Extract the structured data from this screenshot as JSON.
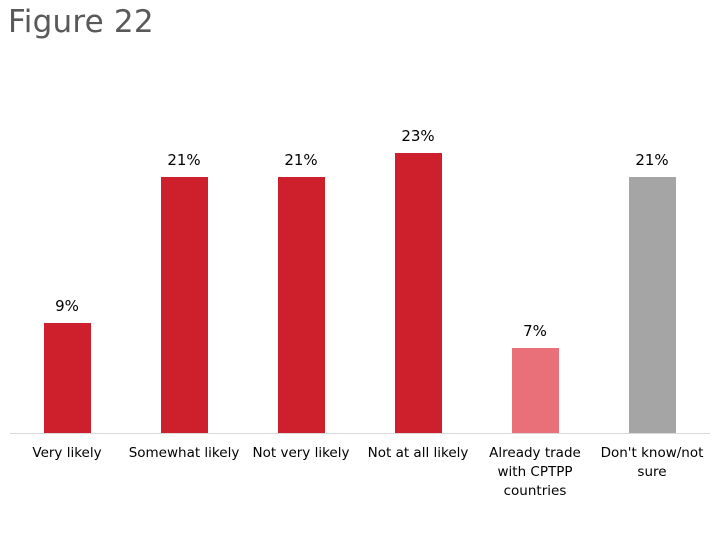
{
  "figure": {
    "title": "Figure 22"
  },
  "chart_data": {
    "type": "bar",
    "title": "Figure 22",
    "xlabel": "",
    "ylabel": "",
    "categories": [
      "Very likely",
      "Somewhat likely",
      "Not very likely",
      "Not at all likely",
      "Already trade with CPTPP countries",
      "Don't know/not sure"
    ],
    "display_categories": [
      [
        "Very likely"
      ],
      [
        "Somewhat likely"
      ],
      [
        "Not very likely"
      ],
      [
        "Not at all likely"
      ],
      [
        "Already trade",
        "with CPTPP",
        "countries"
      ],
      [
        "Don't know/not",
        "sure"
      ]
    ],
    "values": [
      9,
      21,
      21,
      23,
      7,
      21
    ],
    "value_labels": [
      "9%",
      "21%",
      "21%",
      "23%",
      "7%",
      "21%"
    ],
    "colors": [
      "#cd1f2c",
      "#cd1f2c",
      "#cd1f2c",
      "#cd1f2c",
      "#e97078",
      "#a5a5a5"
    ],
    "grid": false,
    "legend": "none",
    "ylim": [
      0,
      25
    ]
  }
}
